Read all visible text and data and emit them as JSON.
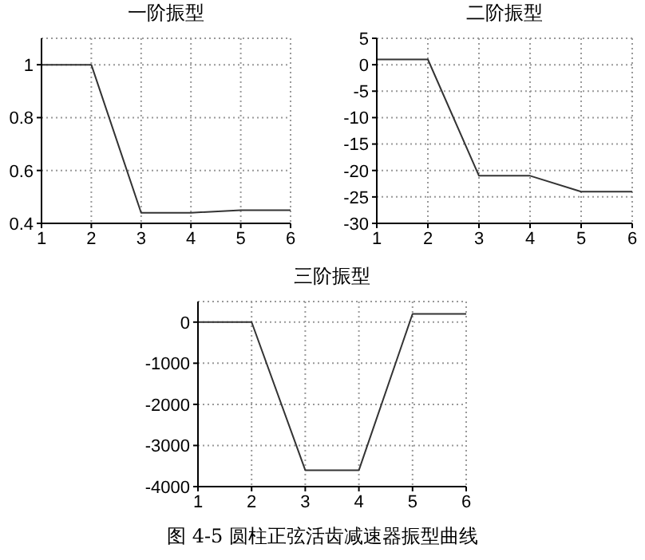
{
  "chart_data": [
    {
      "type": "line",
      "title": "一阶振型",
      "x": [
        1,
        2,
        3,
        4,
        5,
        6
      ],
      "series": [
        {
          "color": "#333333",
          "values": [
            1,
            1,
            0.44,
            0.44,
            0.45,
            0.45
          ]
        }
      ],
      "xlim": [
        1,
        6
      ],
      "xticks": [
        1,
        2,
        3,
        4,
        5,
        6
      ],
      "ylim": [
        0.4,
        1.1
      ],
      "yticks": [
        0.4,
        0.6,
        0.8,
        1
      ],
      "grid": true,
      "marker": "none",
      "line_style": "solid"
    },
    {
      "type": "line",
      "title": "二阶振型",
      "x": [
        1,
        2,
        3,
        4,
        5,
        6
      ],
      "series": [
        {
          "color": "#333333",
          "values": [
            1,
            1,
            -21,
            -21,
            -24,
            -24
          ]
        }
      ],
      "xlim": [
        1,
        6
      ],
      "xticks": [
        1,
        2,
        3,
        4,
        5,
        6
      ],
      "ylim": [
        -30,
        5
      ],
      "yticks": [
        -30,
        -25,
        -20,
        -15,
        -10,
        -5,
        0,
        5
      ],
      "grid": true,
      "marker": "none",
      "line_style": "solid"
    },
    {
      "type": "line",
      "title": "三阶振型",
      "x": [
        1,
        2,
        3,
        4,
        5,
        6
      ],
      "series": [
        {
          "color": "#333333",
          "values": [
            0,
            0,
            -3600,
            -3600,
            200,
            200
          ]
        }
      ],
      "xlim": [
        1,
        6
      ],
      "xticks": [
        1,
        2,
        3,
        4,
        5,
        6
      ],
      "ylim": [
        -4000,
        500
      ],
      "yticks": [
        -4000,
        -3000,
        -2000,
        -1000,
        0
      ],
      "grid": true,
      "marker": "none",
      "line_style": "solid",
      "annotations": [
        "图 4-5  圆柱正弦活齿减速器振型曲线"
      ]
    }
  ]
}
